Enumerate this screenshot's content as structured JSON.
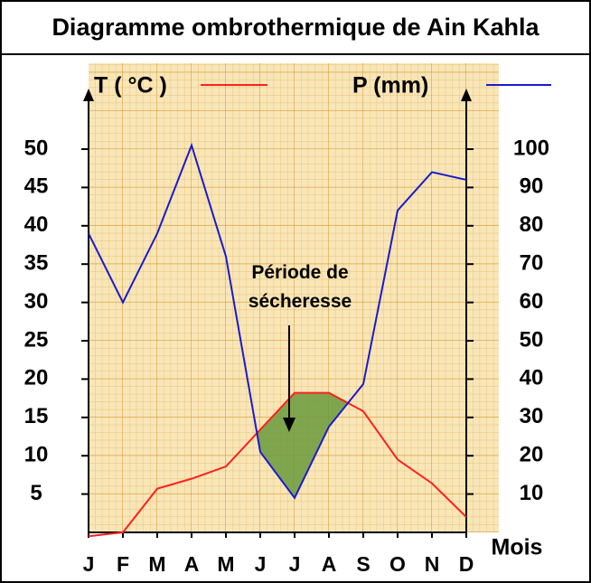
{
  "chart_data": {
    "type": "ombrothermic",
    "title": "Diagramme ombrothermique de Ain Kahla",
    "x_label": "Mois",
    "annotation": "Période de sécheresse",
    "categories": [
      "J",
      "F",
      "M",
      "A",
      "M",
      "J",
      "J",
      "A",
      "S",
      "O",
      "N",
      "D"
    ],
    "series": [
      {
        "name": "T ( °C )",
        "color": "#ff2020",
        "values": [
          -0.5,
          0,
          5.7,
          7,
          8.6,
          13.4,
          18.2,
          18.2,
          15.8,
          9.5,
          6.4,
          2
        ]
      },
      {
        "name": "P (mm)",
        "color": "#1a1ad0",
        "axis": "y2",
        "values": [
          78,
          60,
          78,
          101,
          72,
          21,
          9,
          27.6,
          38.7,
          84,
          94,
          92
        ]
      }
    ],
    "ylim": [
      0,
      50
    ],
    "yticks": [
      5,
      10,
      15,
      20,
      25,
      30,
      35,
      40,
      45,
      50
    ],
    "y2lim": [
      0,
      100
    ],
    "y2ticks": [
      10,
      20,
      30,
      40,
      50,
      60,
      70,
      80,
      90,
      100
    ],
    "dry_color": "#6a9a3c"
  }
}
